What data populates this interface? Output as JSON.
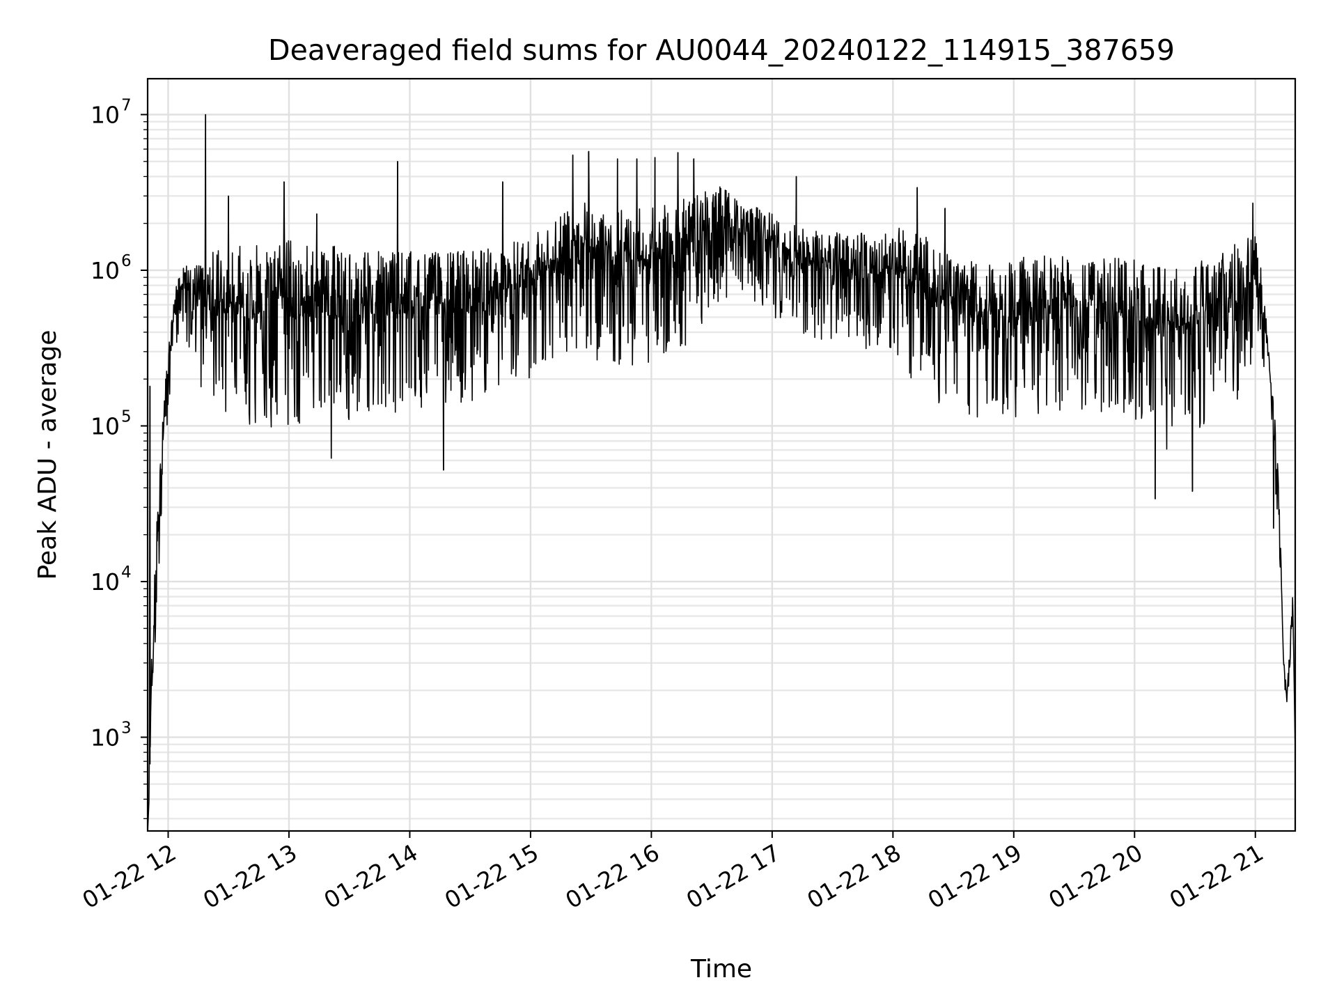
{
  "chart_data": {
    "type": "line",
    "title": "Deaveraged field sums for AU0044_20240122_114915_387659",
    "xlabel": "Time",
    "ylabel": "Peak ADU - average",
    "yscale": "log",
    "ylim": [
      250,
      17000000
    ],
    "xlim_hours": [
      11.83,
      21.33
    ],
    "grid": true,
    "legend": "none",
    "line_color": "#000000",
    "x_ticks": [
      {
        "hour": 12,
        "label": "01-22 12"
      },
      {
        "hour": 13,
        "label": "01-22 13"
      },
      {
        "hour": 14,
        "label": "01-22 14"
      },
      {
        "hour": 15,
        "label": "01-22 15"
      },
      {
        "hour": 16,
        "label": "01-22 16"
      },
      {
        "hour": 17,
        "label": "01-22 17"
      },
      {
        "hour": 18,
        "label": "01-22 18"
      },
      {
        "hour": 19,
        "label": "01-22 19"
      },
      {
        "hour": 20,
        "label": "01-22 20"
      },
      {
        "hour": 21,
        "label": "01-22 21"
      }
    ],
    "y_ticks": [
      {
        "value": 1000,
        "base": "10",
        "exp": "3"
      },
      {
        "value": 10000,
        "base": "10",
        "exp": "4"
      },
      {
        "value": 100000,
        "base": "10",
        "exp": "5"
      },
      {
        "value": 1000000,
        "base": "10",
        "exp": "6"
      },
      {
        "value": 10000000,
        "base": "10",
        "exp": "7"
      }
    ],
    "series": [
      {
        "upper_envelope": {
          "x": [
            11.83,
            11.86,
            11.9,
            11.95,
            12.0,
            12.05,
            12.1,
            12.2,
            12.3,
            12.5,
            12.7,
            13.0,
            13.3,
            13.6,
            14.0,
            14.3,
            14.6,
            15.0,
            15.2,
            15.4,
            15.6,
            15.8,
            16.0,
            16.2,
            16.4,
            16.55,
            16.7,
            16.9,
            17.1,
            17.3,
            17.6,
            17.9,
            18.1,
            18.3,
            18.5,
            18.8,
            19.0,
            19.3,
            19.6,
            19.9,
            20.1,
            20.3,
            20.5,
            20.7,
            20.9,
            21.0,
            21.05,
            21.1,
            21.15,
            21.2,
            21.23,
            21.26,
            21.29,
            21.31,
            21.33
          ],
          "y": [
            250,
            3000,
            25000,
            100000,
            300000,
            700000,
            1000000,
            1200000,
            1300000,
            1400000,
            1500000,
            1600000,
            1500000,
            1400000,
            1350000,
            1300000,
            1400000,
            1600000,
            2200000,
            2800000,
            2600000,
            2500000,
            2600000,
            2700000,
            3200000,
            3600000,
            3000000,
            2500000,
            2200000,
            1900000,
            1700000,
            1800000,
            1900000,
            1600000,
            1200000,
            1100000,
            1200000,
            1300000,
            1250000,
            1200000,
            1150000,
            1100000,
            1150000,
            1300000,
            1600000,
            1700000,
            1000000,
            400000,
            150000,
            40000,
            4000,
            1800,
            5000,
            9000,
            800
          ]
        },
        "lower_envelope": {
          "x": [
            11.83,
            11.86,
            11.9,
            11.95,
            12.0,
            12.05,
            12.1,
            12.2,
            12.3,
            12.5,
            12.7,
            13.0,
            13.3,
            13.6,
            14.0,
            14.3,
            14.6,
            15.0,
            15.2,
            15.4,
            15.6,
            15.8,
            16.0,
            16.2,
            16.4,
            16.55,
            16.7,
            16.9,
            17.1,
            17.3,
            17.6,
            17.9,
            18.1,
            18.3,
            18.5,
            18.8,
            19.0,
            19.3,
            19.6,
            19.9,
            20.1,
            20.3,
            20.5,
            20.7,
            20.9,
            21.0,
            21.05,
            21.1,
            21.15,
            21.2,
            21.23,
            21.26,
            21.29,
            21.31,
            21.33
          ],
          "y": [
            250,
            400,
            5000,
            30000,
            120000,
            250000,
            400000,
            250000,
            150000,
            100000,
            95000,
            95000,
            100000,
            110000,
            120000,
            130000,
            150000,
            200000,
            280000,
            300000,
            250000,
            230000,
            250000,
            280000,
            400000,
            600000,
            650000,
            550000,
            450000,
            380000,
            320000,
            300000,
            220000,
            150000,
            120000,
            100000,
            110000,
            120000,
            125000,
            120000,
            90000,
            65000,
            80000,
            110000,
            150000,
            200000,
            300000,
            150000,
            50000,
            12000,
            2500,
            1500,
            3000,
            6000,
            800
          ]
        },
        "spikes": [
          {
            "x": 11.85,
            "y": 180000
          },
          {
            "x": 11.98,
            "y": 200000
          },
          {
            "x": 12.31,
            "y": 10000000
          },
          {
            "x": 12.5,
            "y": 3000000
          },
          {
            "x": 12.96,
            "y": 3700000
          },
          {
            "x": 13.23,
            "y": 2300000
          },
          {
            "x": 13.9,
            "y": 5000000
          },
          {
            "x": 14.77,
            "y": 3700000
          },
          {
            "x": 15.35,
            "y": 5500000
          },
          {
            "x": 15.48,
            "y": 5800000
          },
          {
            "x": 15.72,
            "y": 5200000
          },
          {
            "x": 15.88,
            "y": 5200000
          },
          {
            "x": 16.03,
            "y": 5300000
          },
          {
            "x": 16.22,
            "y": 5700000
          },
          {
            "x": 16.35,
            "y": 5200000
          },
          {
            "x": 17.2,
            "y": 4000000
          },
          {
            "x": 18.2,
            "y": 3400000
          },
          {
            "x": 18.43,
            "y": 2500000
          },
          {
            "x": 20.98,
            "y": 2700000
          },
          {
            "x": 14.28,
            "y": 52000
          },
          {
            "x": 13.35,
            "y": 62000
          },
          {
            "x": 20.17,
            "y": 34000
          },
          {
            "x": 20.48,
            "y": 38000
          },
          {
            "x": 21.15,
            "y": 22000
          }
        ]
      }
    ]
  }
}
